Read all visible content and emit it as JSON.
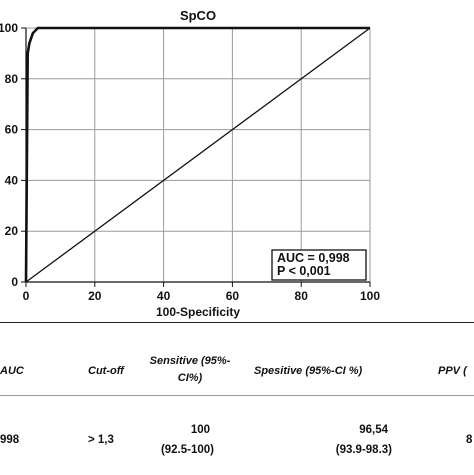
{
  "chart_data": {
    "type": "line",
    "title": "SpCO",
    "xlabel": "100-Specificity",
    "ylabel": "",
    "xlim": [
      0,
      100
    ],
    "ylim": [
      0,
      100
    ],
    "x_ticks": [
      "0",
      "20",
      "40",
      "60",
      "80",
      "100"
    ],
    "y_ticks": [
      "0",
      "20",
      "40",
      "60",
      "80",
      "100"
    ],
    "grid": true,
    "series": [
      {
        "x": [
          0,
          0.5,
          1,
          2,
          3.46,
          5,
          100
        ],
        "y": [
          0,
          90,
          94,
          98,
          100,
          100,
          100
        ]
      },
      {
        "x": [
          0,
          100
        ],
        "y": [
          0,
          100
        ]
      }
    ],
    "annotation": {
      "lines": [
        "AUC = 0,998",
        "P < 0,001"
      ],
      "placement": "bottom-right"
    }
  },
  "table": {
    "headers": [
      "AUC",
      "Cut-off",
      "Sensitive (95%-CI%)",
      "Spesitive (95%-CI %)",
      "PPV ("
    ],
    "row": {
      "auc": "998",
      "cutoff": "> 1,3",
      "sens_value": "100",
      "sens_ci": "(92.5-100)",
      "spec_value": "96,54",
      "spec_ci": "(93.9-98.3)",
      "ppv": "8"
    }
  },
  "colors": {
    "line": "#111111",
    "grid": "#9a9a9a",
    "axis": "#111111"
  }
}
